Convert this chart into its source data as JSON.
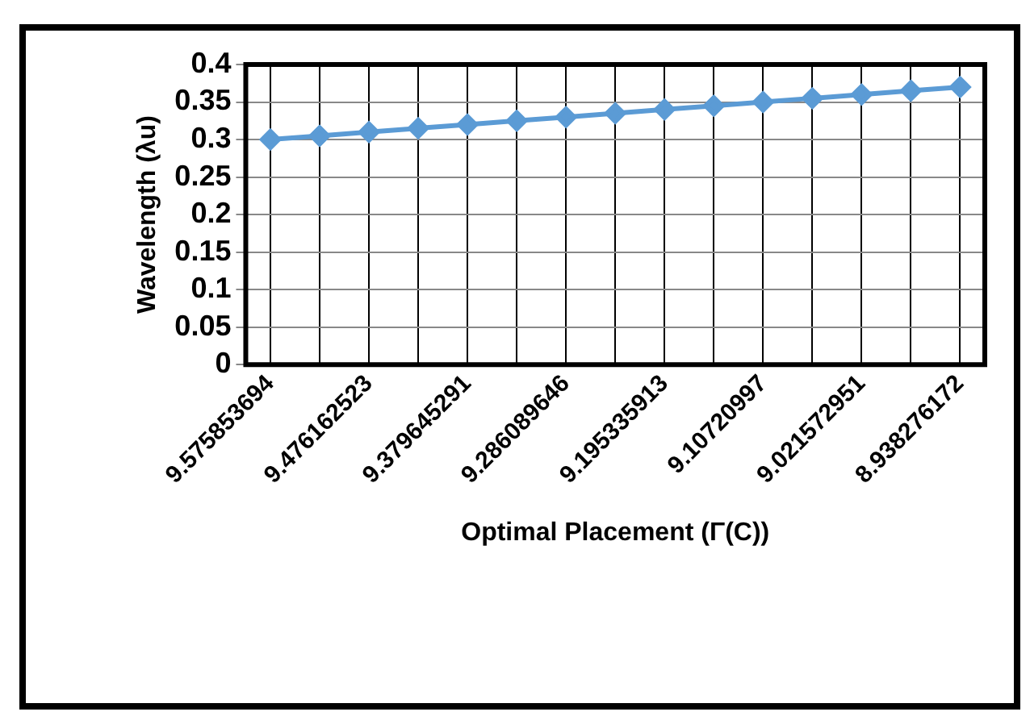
{
  "chart_data": {
    "type": "line",
    "xlabel": "Optimal Placement (Γ(C))",
    "ylabel": "Wavelength (λu)",
    "categories": [
      "9.575853694",
      null,
      "9.476162523",
      null,
      "9.379645291",
      null,
      "9.286089646",
      null,
      "9.195335913",
      null,
      "9.10720997",
      null,
      "9.021572951",
      null,
      "8.938276172"
    ],
    "series": [
      {
        "color": "#5b9bd5",
        "values": [
          0.3,
          0.305,
          0.31,
          0.315,
          0.32,
          0.325,
          0.33,
          0.335,
          0.34,
          0.345,
          0.35,
          0.355,
          0.36,
          0.365,
          0.37
        ]
      }
    ],
    "ylim": [
      0,
      0.4
    ],
    "yticks": [
      0,
      0.05,
      0.1,
      0.15,
      0.2,
      0.25,
      0.3,
      0.35,
      0.4
    ],
    "grid": true,
    "legend": false,
    "marker": "diamond",
    "line_style": "solid"
  }
}
